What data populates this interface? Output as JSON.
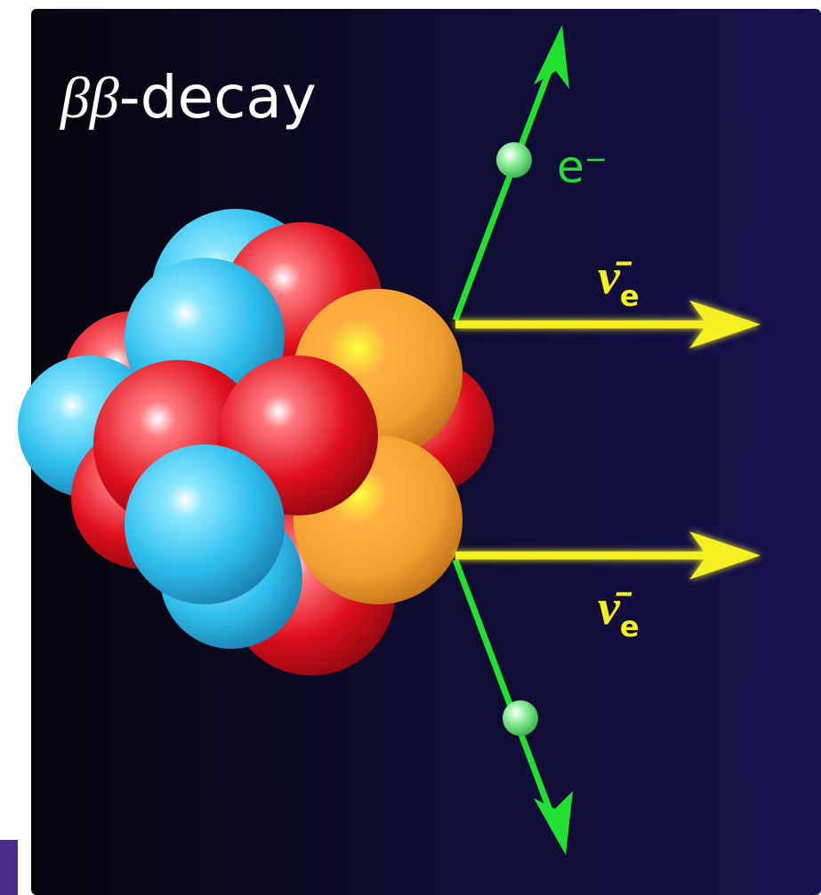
{
  "title": {
    "symbol": "ββ",
    "suffix": "-decay"
  },
  "electron_label": "e⁻",
  "neutrino_labels": [
    {
      "symbol": "ν̄",
      "subscript": "e"
    },
    {
      "symbol": "ν̄",
      "subscript": "e"
    }
  ]
}
